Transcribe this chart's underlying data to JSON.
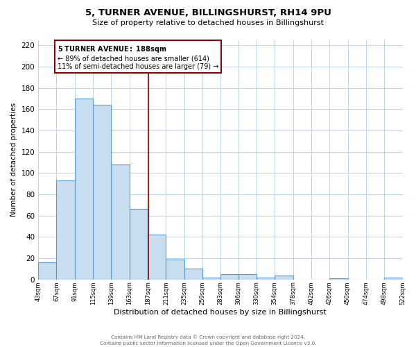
{
  "title": "5, TURNER AVENUE, BILLINGSHURST, RH14 9PU",
  "subtitle": "Size of property relative to detached houses in Billingshurst",
  "xlabel": "Distribution of detached houses by size in Billingshurst",
  "ylabel": "Number of detached properties",
  "bar_edges": [
    43,
    67,
    91,
    115,
    139,
    163,
    187,
    211,
    235,
    259,
    283,
    306,
    330,
    354,
    378,
    402,
    426,
    450,
    474,
    498,
    522
  ],
  "bar_heights": [
    16,
    93,
    170,
    164,
    108,
    66,
    42,
    19,
    10,
    2,
    5,
    5,
    2,
    4,
    0,
    0,
    1,
    0,
    0,
    2
  ],
  "bar_color": "#c9ddf0",
  "bar_edge_color": "#5b9bd5",
  "vline_x": 188,
  "vline_color": "#8b0000",
  "annotation_title": "5 TURNER AVENUE: 188sqm",
  "annotation_line1": "← 89% of detached houses are smaller (614)",
  "annotation_line2": "11% of semi-detached houses are larger (79) →",
  "annotation_box_edge_color": "#8b0000",
  "ylim": [
    0,
    225
  ],
  "yticks": [
    0,
    20,
    40,
    60,
    80,
    100,
    120,
    140,
    160,
    180,
    200,
    220
  ],
  "footer_line1": "Contains HM Land Registry data © Crown copyright and database right 2024.",
  "footer_line2": "Contains public sector information licensed under the Open Government Licence v3.0.",
  "bg_color": "#ffffff",
  "grid_color": "#c0d4e8"
}
